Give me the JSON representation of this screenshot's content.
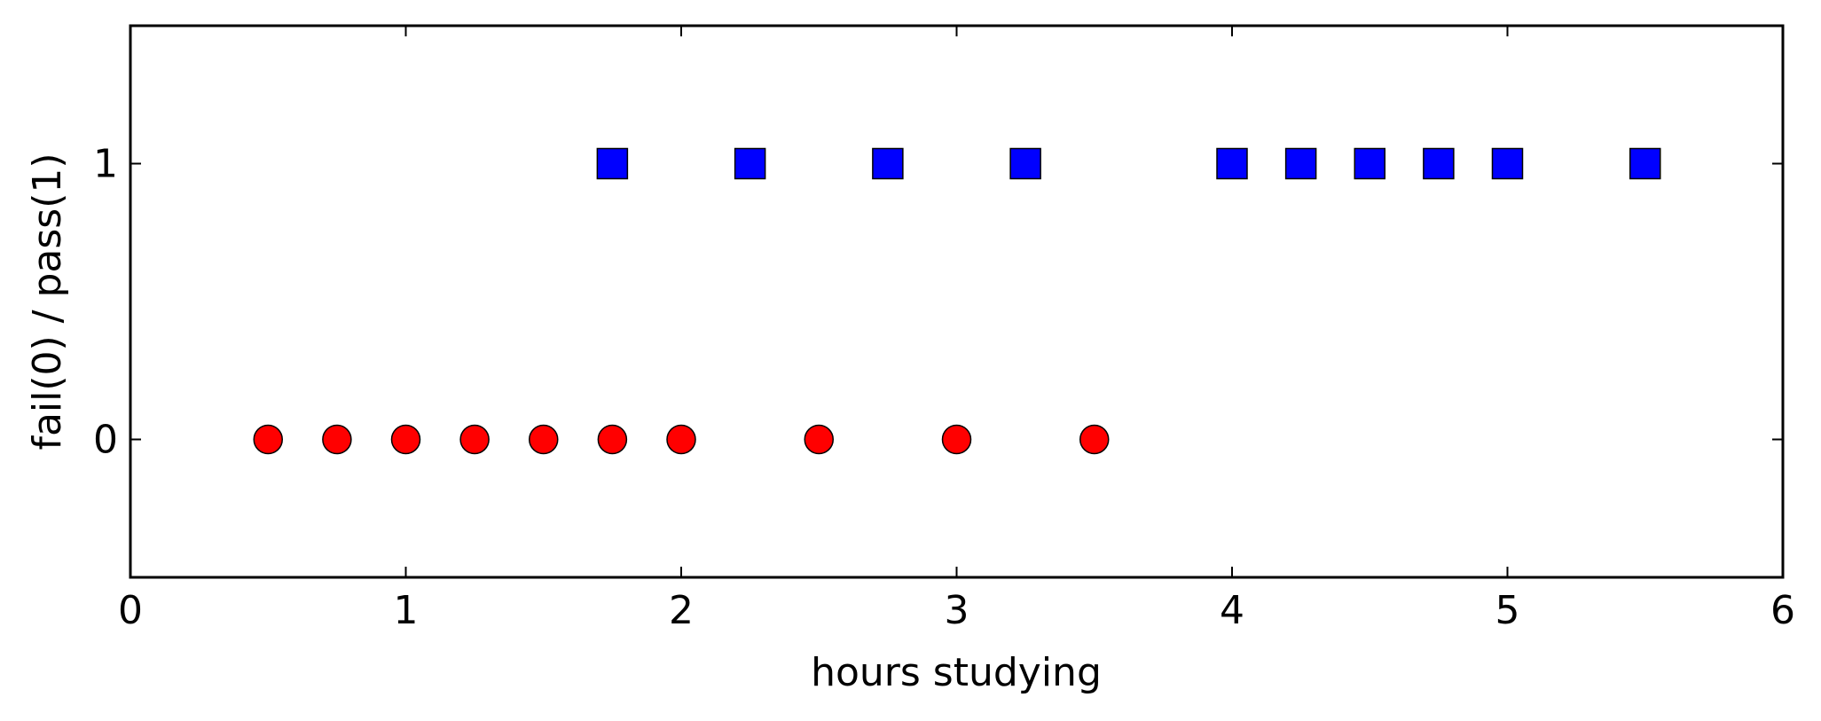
{
  "chart_data": {
    "type": "scatter",
    "title": "",
    "xlabel": "hours studying",
    "ylabel": "fail(0) / pass(1)",
    "xlim": [
      0,
      6
    ],
    "ylim": [
      -0.5,
      1.5
    ],
    "xticks": [
      "0",
      "1",
      "2",
      "3",
      "4",
      "5",
      "6"
    ],
    "yticks": [
      "0",
      "1"
    ],
    "grid": false,
    "series": [
      {
        "marker": "circle",
        "color": "#ff0000",
        "x": [
          0.5,
          0.75,
          1.0,
          1.25,
          1.5,
          1.75,
          2.0,
          2.5,
          3.0,
          3.5
        ],
        "y": [
          0,
          0,
          0,
          0,
          0,
          0,
          0,
          0,
          0,
          0
        ]
      },
      {
        "marker": "square",
        "color": "#0000ff",
        "x": [
          1.75,
          2.25,
          2.75,
          3.25,
          4.0,
          4.25,
          4.5,
          4.75,
          5.0,
          5.5
        ],
        "y": [
          1,
          1,
          1,
          1,
          1,
          1,
          1,
          1,
          1,
          1
        ]
      }
    ]
  }
}
